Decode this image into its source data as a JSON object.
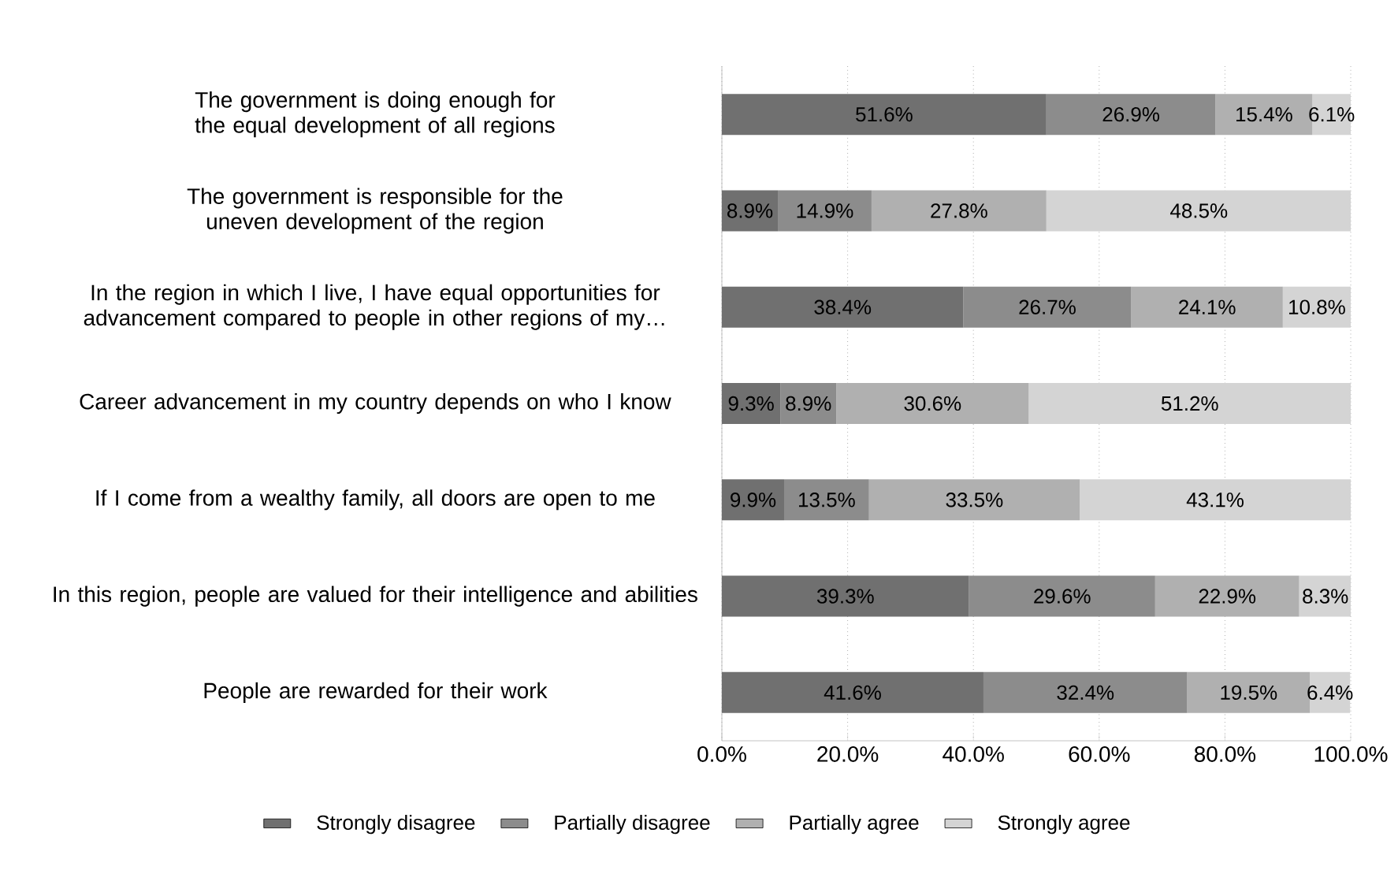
{
  "chart_data": {
    "type": "bar",
    "orientation": "horizontal",
    "stacked": true,
    "categories": [
      "The government is doing enough for the equal development of all  regions",
      "The government is responsible for the uneven development of the region",
      "In the region in which I live, I have equal opportunities for advancement compared to people in other regions of my…",
      "Career advancement in my country depends on who I know",
      "If I come from a wealthy family, all doors are open to me",
      "In this region, people are valued for their intelligence and abilities",
      "People are rewarded for their work"
    ],
    "series": [
      {
        "name": "Strongly disagree",
        "color": "#707070",
        "values": [
          51.6,
          8.9,
          38.4,
          9.3,
          9.9,
          39.3,
          41.6
        ],
        "value_labels": [
          "51.6%",
          "8.9%",
          "38.4%",
          "9.3%",
          "9.9%",
          "39.3%",
          "41.6%"
        ]
      },
      {
        "name": "Partially disagree",
        "color": "#8c8c8c",
        "values": [
          26.9,
          14.9,
          26.7,
          8.9,
          13.5,
          29.6,
          32.4
        ],
        "value_labels": [
          "26.9%",
          "14.9%",
          "26.7%",
          "8.9%",
          "13.5%",
          "29.6%",
          "32.4%"
        ]
      },
      {
        "name": "Partially agree",
        "color": "#b0b0b0",
        "values": [
          15.4,
          27.8,
          24.1,
          30.6,
          33.5,
          22.9,
          19.5
        ],
        "value_labels": [
          "15.4%",
          "27.8%",
          "24.1%",
          "30.6%",
          "33.5%",
          "22.9%",
          "19.5%"
        ]
      },
      {
        "name": "Strongly agree",
        "color": "#d4d4d4",
        "values": [
          6.1,
          48.5,
          10.8,
          51.2,
          43.1,
          8.3,
          6.4
        ],
        "value_labels": [
          "6.1%",
          "48.5%",
          "10.8%",
          "51.2%",
          "43.1%",
          "8.3%",
          "6.4%"
        ]
      }
    ],
    "xlim": [
      0,
      100
    ],
    "xticks": [
      {
        "value": 0,
        "label": "0.0%"
      },
      {
        "value": 20,
        "label": "20.0%"
      },
      {
        "value": 40,
        "label": "40.0%"
      },
      {
        "value": 60,
        "label": "60.0%"
      },
      {
        "value": 80,
        "label": "80.0%"
      },
      {
        "value": 100,
        "label": "100.0%"
      }
    ],
    "grid": "x",
    "legend": "bottom"
  }
}
